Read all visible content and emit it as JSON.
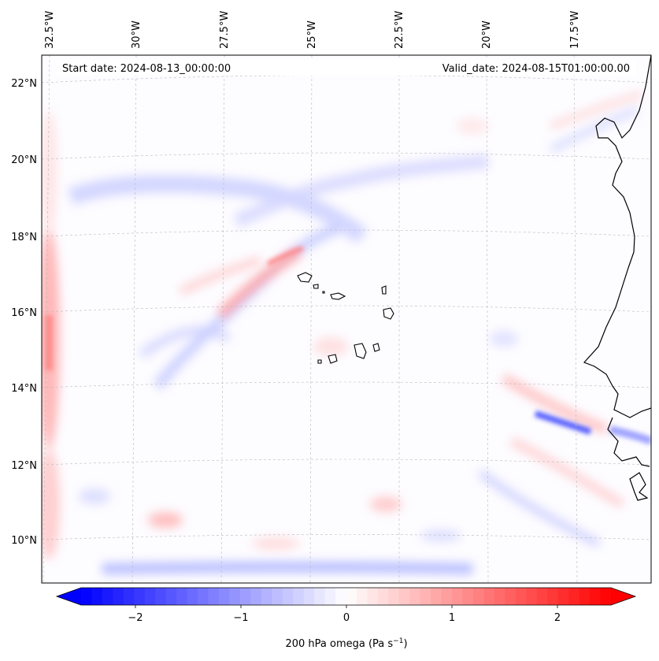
{
  "header": {
    "start_date": "Start date: 2024-08-13_00:00:00",
    "valid_date": "Valid_date: 2024-08-15T01:00:00.00"
  },
  "map": {
    "lon_labels": [
      "32.5°W",
      "30°W",
      "27.5°W",
      "25°W",
      "22.5°W",
      "20°W",
      "17.5°W"
    ],
    "lat_labels": [
      "22°N",
      "20°N",
      "18°N",
      "16°N",
      "14°N",
      "12°N",
      "10°N"
    ],
    "gridlines": "dashed-gray"
  },
  "colorbar": {
    "ticks": [
      "−2",
      "−1",
      "0",
      "1",
      "2"
    ],
    "label": "200 hPa omega (Pa s",
    "label_sup": "−1",
    "label_end": ")",
    "colormap": "bwr",
    "color_min": "#0000ff",
    "color_mid": "#ffffff",
    "color_max": "#ff0000",
    "range": [
      -2.5,
      2.5
    ],
    "extend": "both"
  }
}
